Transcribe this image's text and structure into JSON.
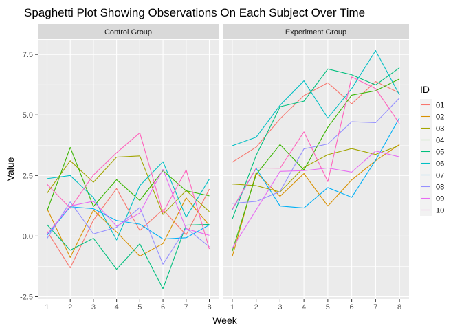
{
  "chart_data": {
    "type": "line",
    "title": "Spaghetti Plot Showing Observations On Each Subject Over Time",
    "xlabel": "Week",
    "ylabel": "Value",
    "x": [
      1,
      2,
      3,
      4,
      5,
      6,
      7,
      8
    ],
    "ylim": [
      -2.6,
      8.1
    ],
    "y_ticks": [
      -2.5,
      0.0,
      2.5,
      5.0,
      7.5
    ],
    "y_tick_labels": [
      "-2.5",
      "0.0",
      "2.5",
      "5.0",
      "7.5"
    ],
    "x_tick_labels": [
      "1",
      "2",
      "3",
      "4",
      "5",
      "6",
      "7",
      "8"
    ],
    "grid": true,
    "legend": {
      "title": "ID",
      "placement": "right",
      "entries": [
        "01",
        "02",
        "03",
        "04",
        "05",
        "06",
        "07",
        "08",
        "09",
        "10"
      ]
    },
    "colors": {
      "01": "#F8766D",
      "02": "#D89000",
      "03": "#A3A500",
      "04": "#39B600",
      "05": "#00BF7D",
      "06": "#00BFC4",
      "07": "#00B0F6",
      "08": "#9590FF",
      "09": "#E76BF3",
      "10": "#FF62BC"
    },
    "panels": [
      {
        "label": "Control Group",
        "series": [
          {
            "name": "01",
            "values": [
              0.2,
              -1.31,
              0.66,
              1.96,
              0.23,
              1.09,
              0.05,
              1.94
            ]
          },
          {
            "name": "02",
            "values": [
              1.13,
              -0.88,
              1.07,
              0.17,
              -0.83,
              -0.31,
              1.58,
              0.44
            ]
          },
          {
            "name": "03",
            "values": [
              1.77,
              3.11,
              2.22,
              3.26,
              3.31,
              0.89,
              1.88,
              1.01
            ]
          },
          {
            "name": "04",
            "values": [
              1.04,
              3.66,
              1.22,
              2.33,
              1.47,
              2.7,
              1.87,
              1.66
            ]
          },
          {
            "name": "05",
            "values": [
              0.47,
              -0.58,
              -0.09,
              -1.37,
              -0.32,
              -2.17,
              0.45,
              0.48
            ]
          },
          {
            "name": "06",
            "values": [
              2.37,
              2.5,
              1.59,
              -0.16,
              2.08,
              3.07,
              0.78,
              2.35
            ]
          },
          {
            "name": "07",
            "values": [
              0.03,
              1.21,
              1.13,
              0.64,
              0.49,
              -0.12,
              -0.07,
              0.46
            ]
          },
          {
            "name": "08",
            "values": [
              -0.1,
              1.41,
              0.09,
              0.36,
              1.18,
              -1.16,
              0.33,
              -0.44
            ]
          },
          {
            "name": "09",
            "values": [
              0.08,
              1.24,
              1.44,
              0.41,
              0.95,
              2.75,
              0.3,
              0.03
            ]
          },
          {
            "name": "10",
            "values": [
              2.14,
              1.15,
              2.52,
              3.44,
              4.26,
              0.97,
              2.73,
              -0.53
            ]
          }
        ]
      },
      {
        "label": "Experiment Group",
        "series": [
          {
            "name": "01",
            "values": [
              3.05,
              3.67,
              4.84,
              5.8,
              6.33,
              5.46,
              6.38,
              5.91
            ]
          },
          {
            "name": "02",
            "values": [
              -0.84,
              2.63,
              1.64,
              2.58,
              1.24,
              2.32,
              3.11,
              3.78
            ]
          },
          {
            "name": "03",
            "values": [
              2.15,
              2.08,
              1.82,
              2.84,
              3.36,
              3.61,
              3.37,
              3.74
            ]
          },
          {
            "name": "04",
            "values": [
              -0.62,
              2.54,
              3.78,
              2.73,
              4.49,
              5.82,
              6.0,
              6.49
            ]
          },
          {
            "name": "05",
            "values": [
              0.7,
              3.33,
              5.34,
              5.57,
              6.9,
              6.66,
              6.24,
              6.95
            ]
          },
          {
            "name": "06",
            "values": [
              3.73,
              4.08,
              5.4,
              6.41,
              4.87,
              6.09,
              7.66,
              5.83
            ]
          },
          {
            "name": "07",
            "values": [
              1.09,
              2.8,
              1.24,
              1.16,
              2.0,
              1.6,
              3.13,
              4.88
            ]
          },
          {
            "name": "08",
            "values": [
              1.35,
              1.43,
              1.84,
              3.6,
              3.8,
              4.72,
              4.68,
              5.7
            ]
          },
          {
            "name": "09",
            "values": [
              -0.5,
              1.08,
              2.67,
              2.7,
              2.81,
              2.64,
              3.51,
              3.27
            ]
          },
          {
            "name": "10",
            "values": [
              1.11,
              2.81,
              2.8,
              4.3,
              2.25,
              6.57,
              6.09,
              4.64
            ]
          }
        ]
      }
    ]
  }
}
